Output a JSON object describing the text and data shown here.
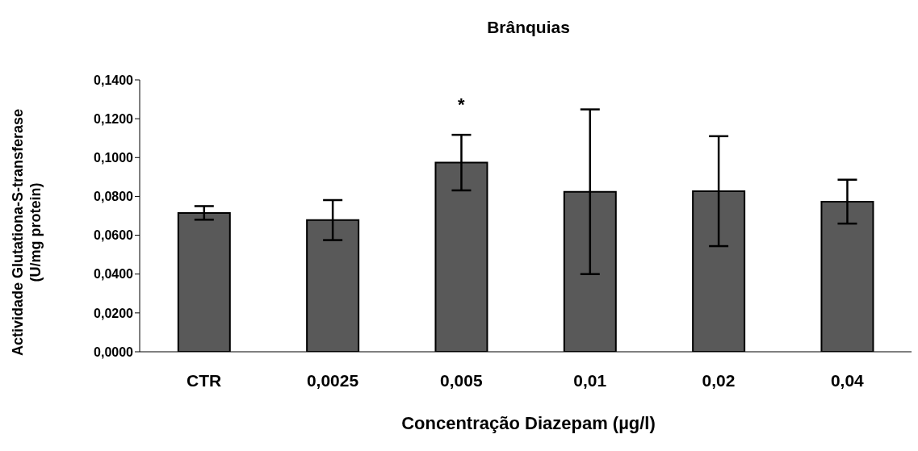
{
  "chart_data": {
    "type": "bar",
    "title": "Brânquias",
    "xlabel": "Concentração Diazepam (µg/l)",
    "ylabel": "Actividade Glutationa-S-transferase\n(U/mg protein)",
    "categories": [
      "CTR",
      "0,0025",
      "0,005",
      "0,01",
      "0,02",
      "0,04"
    ],
    "values": [
      0.0715,
      0.0678,
      0.0974,
      0.0824,
      0.0827,
      0.0773
    ],
    "errors": [
      0.0035,
      0.0103,
      0.0143,
      0.0424,
      0.0283,
      0.0113
    ],
    "color": "#595959",
    "ylim": [
      0,
      0.14
    ],
    "yticks": [
      {
        "value": 0,
        "label": "0,0000"
      },
      {
        "value": 0.02,
        "label": "0,0200"
      },
      {
        "value": 0.04,
        "label": "0,0400"
      },
      {
        "value": 0.06,
        "label": "0,0600"
      },
      {
        "value": 0.08,
        "label": "0,0800"
      },
      {
        "value": 0.1,
        "label": "0,1000"
      },
      {
        "value": 0.12,
        "label": "0,1200"
      },
      {
        "value": 0.14,
        "label": "0,1400"
      }
    ],
    "annotations": [
      "*"
    ],
    "grid": false,
    "legend": false
  }
}
